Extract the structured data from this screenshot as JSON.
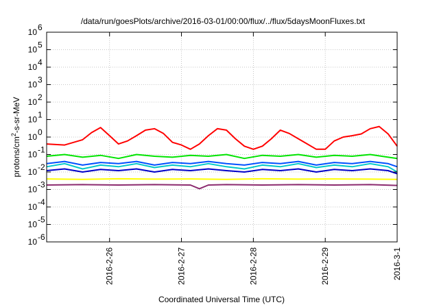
{
  "chart_data": {
    "type": "line",
    "title": "/data/run/goesPlots/archive/2016-03-01/00:00/flux/../flux/5daysMoonFluxes.txt",
    "xlabel": "Coordinated Universal Time (UTC)",
    "ylabel": "protons/cm²-s-sr-MeV",
    "ylabel_parts": {
      "pre": "protons/cm",
      "sup": "2",
      "post": "-s-sr-MeV"
    },
    "yscale": "log",
    "ylim": [
      1e-06,
      1000000.0
    ],
    "xlim": [
      "2016-02-25T03:00",
      "2016-03-01T00:00"
    ],
    "grid": true,
    "y_ticks": [
      {
        "base": "10",
        "exp": "-6",
        "value": 1e-06
      },
      {
        "base": "10",
        "exp": "-5",
        "value": 1e-05
      },
      {
        "base": "10",
        "exp": "-4",
        "value": 0.0001
      },
      {
        "base": "10",
        "exp": "-3",
        "value": 0.001
      },
      {
        "base": "10",
        "exp": "-2",
        "value": 0.01
      },
      {
        "base": "10",
        "exp": "-1",
        "value": 0.1
      },
      {
        "base": "10",
        "exp": "0",
        "value": 1
      },
      {
        "base": "10",
        "exp": "1",
        "value": 10
      },
      {
        "base": "10",
        "exp": "2",
        "value": 100
      },
      {
        "base": "10",
        "exp": "3",
        "value": 1000
      },
      {
        "base": "10",
        "exp": "4",
        "value": 10000
      },
      {
        "base": "10",
        "exp": "5",
        "value": 100000
      },
      {
        "base": "10",
        "exp": "6",
        "value": 1000000
      }
    ],
    "x_ticks": [
      {
        "label": "2016-2-26",
        "date": "2016-02-26T00:00"
      },
      {
        "label": "2016-2-27",
        "date": "2016-02-27T00:00"
      },
      {
        "label": "2016-2-28",
        "date": "2016-02-28T00:00"
      },
      {
        "label": "2016-2-29",
        "date": "2016-02-29T00:00"
      },
      {
        "label": "2016-3-1",
        "date": "2016-03-01T00:00"
      }
    ],
    "series": [
      {
        "color": "#ff0000",
        "x": [
          "2016-02-25T03:00",
          "2016-02-25T09:00",
          "2016-02-25T15:00",
          "2016-02-25T18:00",
          "2016-02-25T21:00",
          "2016-02-26T00:00",
          "2016-02-26T03:00",
          "2016-02-26T06:00",
          "2016-02-26T09:00",
          "2016-02-26T12:00",
          "2016-02-26T15:00",
          "2016-02-26T18:00",
          "2016-02-26T21:00",
          "2016-02-27T00:00",
          "2016-02-27T03:00",
          "2016-02-27T06:00",
          "2016-02-27T09:00",
          "2016-02-27T12:00",
          "2016-02-27T15:00",
          "2016-02-27T18:00",
          "2016-02-27T21:00",
          "2016-02-28T00:00",
          "2016-02-28T03:00",
          "2016-02-28T06:00",
          "2016-02-28T09:00",
          "2016-02-28T12:00",
          "2016-02-28T15:00",
          "2016-02-28T18:00",
          "2016-02-28T21:00",
          "2016-02-29T00:00",
          "2016-02-29T03:00",
          "2016-02-29T06:00",
          "2016-02-29T09:00",
          "2016-02-29T12:00",
          "2016-02-29T15:00",
          "2016-02-29T18:00",
          "2016-02-29T21:00",
          "2016-03-01T00:00"
        ],
        "values": [
          0.4,
          0.35,
          0.7,
          1.8,
          3.5,
          1.2,
          0.4,
          0.6,
          1.2,
          2.5,
          3.0,
          1.6,
          0.5,
          0.35,
          0.2,
          0.4,
          1.2,
          3.0,
          2.5,
          0.8,
          0.3,
          0.2,
          0.3,
          0.8,
          2.5,
          1.6,
          0.8,
          0.4,
          0.2,
          0.2,
          0.6,
          1.0,
          1.2,
          1.5,
          3.0,
          4.0,
          1.5,
          0.3
        ]
      },
      {
        "color": "#00e400",
        "x": [
          "2016-02-25T03:00",
          "2016-02-25T09:00",
          "2016-02-25T15:00",
          "2016-02-25T21:00",
          "2016-02-26T03:00",
          "2016-02-26T09:00",
          "2016-02-26T15:00",
          "2016-02-26T21:00",
          "2016-02-27T03:00",
          "2016-02-27T09:00",
          "2016-02-27T15:00",
          "2016-02-27T21:00",
          "2016-02-28T03:00",
          "2016-02-28T09:00",
          "2016-02-28T15:00",
          "2016-02-28T21:00",
          "2016-02-29T03:00",
          "2016-02-29T09:00",
          "2016-02-29T15:00",
          "2016-02-29T21:00",
          "2016-03-01T00:00"
        ],
        "values": [
          0.08,
          0.1,
          0.07,
          0.09,
          0.06,
          0.1,
          0.08,
          0.07,
          0.09,
          0.08,
          0.1,
          0.06,
          0.09,
          0.08,
          0.1,
          0.07,
          0.09,
          0.08,
          0.1,
          0.07,
          0.06
        ]
      },
      {
        "color": "#00c8c8",
        "x": [
          "2016-02-25T03:00",
          "2016-02-25T09:00",
          "2016-02-25T15:00",
          "2016-02-25T21:00",
          "2016-02-26T03:00",
          "2016-02-26T09:00",
          "2016-02-26T15:00",
          "2016-02-26T21:00",
          "2016-02-27T03:00",
          "2016-02-27T09:00",
          "2016-02-27T15:00",
          "2016-02-27T21:00",
          "2016-02-28T03:00",
          "2016-02-28T09:00",
          "2016-02-28T15:00",
          "2016-02-28T21:00",
          "2016-02-29T03:00",
          "2016-02-29T09:00",
          "2016-02-29T15:00",
          "2016-02-29T21:00",
          "2016-03-01T00:00"
        ],
        "values": [
          0.02,
          0.03,
          0.015,
          0.025,
          0.02,
          0.03,
          0.018,
          0.025,
          0.02,
          0.03,
          0.02,
          0.015,
          0.025,
          0.02,
          0.03,
          0.018,
          0.025,
          0.02,
          0.03,
          0.02,
          0.01
        ]
      },
      {
        "color": "#0050ff",
        "x": [
          "2016-02-25T03:00",
          "2016-02-25T09:00",
          "2016-02-25T15:00",
          "2016-02-25T21:00",
          "2016-02-26T03:00",
          "2016-02-26T09:00",
          "2016-02-26T15:00",
          "2016-02-26T21:00",
          "2016-02-27T03:00",
          "2016-02-27T09:00",
          "2016-02-27T15:00",
          "2016-02-27T21:00",
          "2016-02-28T03:00",
          "2016-02-28T09:00",
          "2016-02-28T15:00",
          "2016-02-28T21:00",
          "2016-02-29T03:00",
          "2016-02-29T09:00",
          "2016-02-29T15:00",
          "2016-02-29T21:00",
          "2016-03-01T00:00"
        ],
        "values": [
          0.03,
          0.04,
          0.025,
          0.035,
          0.03,
          0.04,
          0.025,
          0.035,
          0.03,
          0.04,
          0.03,
          0.025,
          0.035,
          0.03,
          0.04,
          0.025,
          0.035,
          0.03,
          0.04,
          0.03,
          0.02
        ]
      },
      {
        "color": "#0000c8",
        "x": [
          "2016-02-25T03:00",
          "2016-02-25T09:00",
          "2016-02-25T15:00",
          "2016-02-25T21:00",
          "2016-02-26T03:00",
          "2016-02-26T09:00",
          "2016-02-26T15:00",
          "2016-02-26T21:00",
          "2016-02-27T03:00",
          "2016-02-27T09:00",
          "2016-02-27T15:00",
          "2016-02-27T21:00",
          "2016-02-28T03:00",
          "2016-02-28T09:00",
          "2016-02-28T15:00",
          "2016-02-28T21:00",
          "2016-02-29T03:00",
          "2016-02-29T09:00",
          "2016-02-29T15:00",
          "2016-02-29T21:00",
          "2016-03-01T00:00"
        ],
        "values": [
          0.012,
          0.015,
          0.01,
          0.014,
          0.012,
          0.015,
          0.01,
          0.014,
          0.012,
          0.015,
          0.012,
          0.01,
          0.014,
          0.012,
          0.015,
          0.01,
          0.014,
          0.012,
          0.015,
          0.012,
          0.008
        ]
      },
      {
        "color": "#ffff00",
        "x": [
          "2016-02-25T03:00",
          "2016-02-25T15:00",
          "2016-02-26T03:00",
          "2016-02-26T15:00",
          "2016-02-27T03:00",
          "2016-02-27T15:00",
          "2016-02-28T03:00",
          "2016-02-28T15:00",
          "2016-02-29T03:00",
          "2016-02-29T15:00",
          "2016-03-01T00:00"
        ],
        "values": [
          0.004,
          0.0038,
          0.0041,
          0.0039,
          0.004,
          0.0038,
          0.0041,
          0.0039,
          0.004,
          0.0039,
          0.0038
        ]
      },
      {
        "color": "#8b2a6e",
        "x": [
          "2016-02-25T03:00",
          "2016-02-25T15:00",
          "2016-02-26T03:00",
          "2016-02-26T15:00",
          "2016-02-27T03:00",
          "2016-02-27T06:00",
          "2016-02-27T09:00",
          "2016-02-27T15:00",
          "2016-02-28T03:00",
          "2016-02-28T15:00",
          "2016-02-29T03:00",
          "2016-02-29T15:00",
          "2016-03-01T00:00"
        ],
        "values": [
          0.0018,
          0.0019,
          0.0018,
          0.0019,
          0.0018,
          0.0011,
          0.0018,
          0.0019,
          0.0018,
          0.0019,
          0.0018,
          0.0019,
          0.0017
        ]
      }
    ]
  }
}
